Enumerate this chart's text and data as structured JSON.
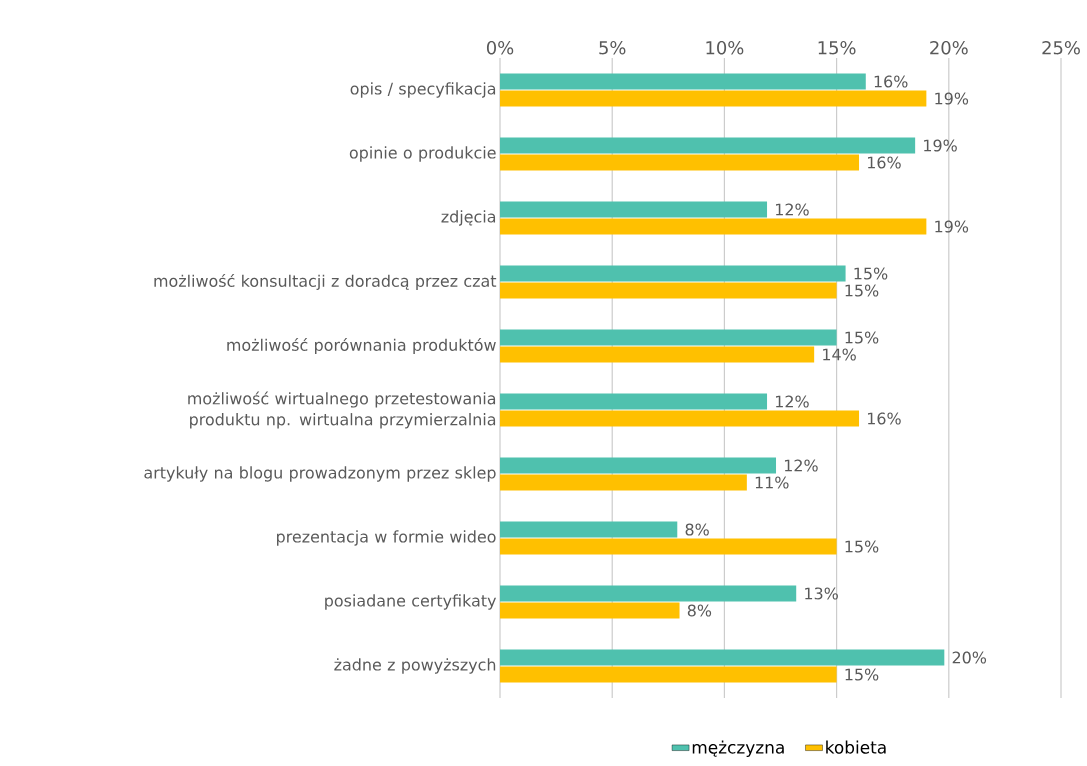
{
  "chart_data": {
    "type": "bar",
    "orientation": "horizontal",
    "categories": [
      "opis / specyfikacja",
      "opinie o produkcie",
      "zdjęcia",
      "możliwość konsultacji z doradcą przez czat",
      "możliwość porównania produktów",
      "możliwość wirtualnego przetestowania produktu  np. wirtualna przymierzalnia",
      "artykuły na blogu prowadzonym przez sklep",
      "prezentacja w formie wideo",
      "posiadane certyfikaty",
      "żadne z powyższych"
    ],
    "series": [
      {
        "name": "mężczyzna",
        "color": "#4fc1ae",
        "values": [
          16.3,
          18.5,
          11.9,
          15.4,
          15.0,
          11.9,
          12.3,
          7.9,
          13.2,
          19.8
        ],
        "value_labels": [
          "16%",
          "19%",
          "12%",
          "15%",
          "15%",
          "12%",
          "12%",
          "8%",
          "13%",
          "20%"
        ]
      },
      {
        "name": "kobieta",
        "color": "#ffc000",
        "values": [
          19.0,
          16.0,
          19.0,
          15.0,
          14.0,
          16.0,
          11.0,
          15.0,
          8.0,
          15.0
        ],
        "value_labels": [
          "19%",
          "16%",
          "19%",
          "15%",
          "14%",
          "16%",
          "11%",
          "15%",
          "8%",
          "15%"
        ]
      }
    ],
    "xlim": [
      0,
      25
    ],
    "xticks": [
      {
        "value": 0,
        "label": "0%"
      },
      {
        "value": 5,
        "label": "5%"
      },
      {
        "value": 10,
        "label": "10%"
      },
      {
        "value": 15,
        "label": "15%"
      },
      {
        "value": 20,
        "label": "20%"
      },
      {
        "value": 25,
        "label": "25%"
      }
    ],
    "grid": "x",
    "legend": "bottom"
  }
}
